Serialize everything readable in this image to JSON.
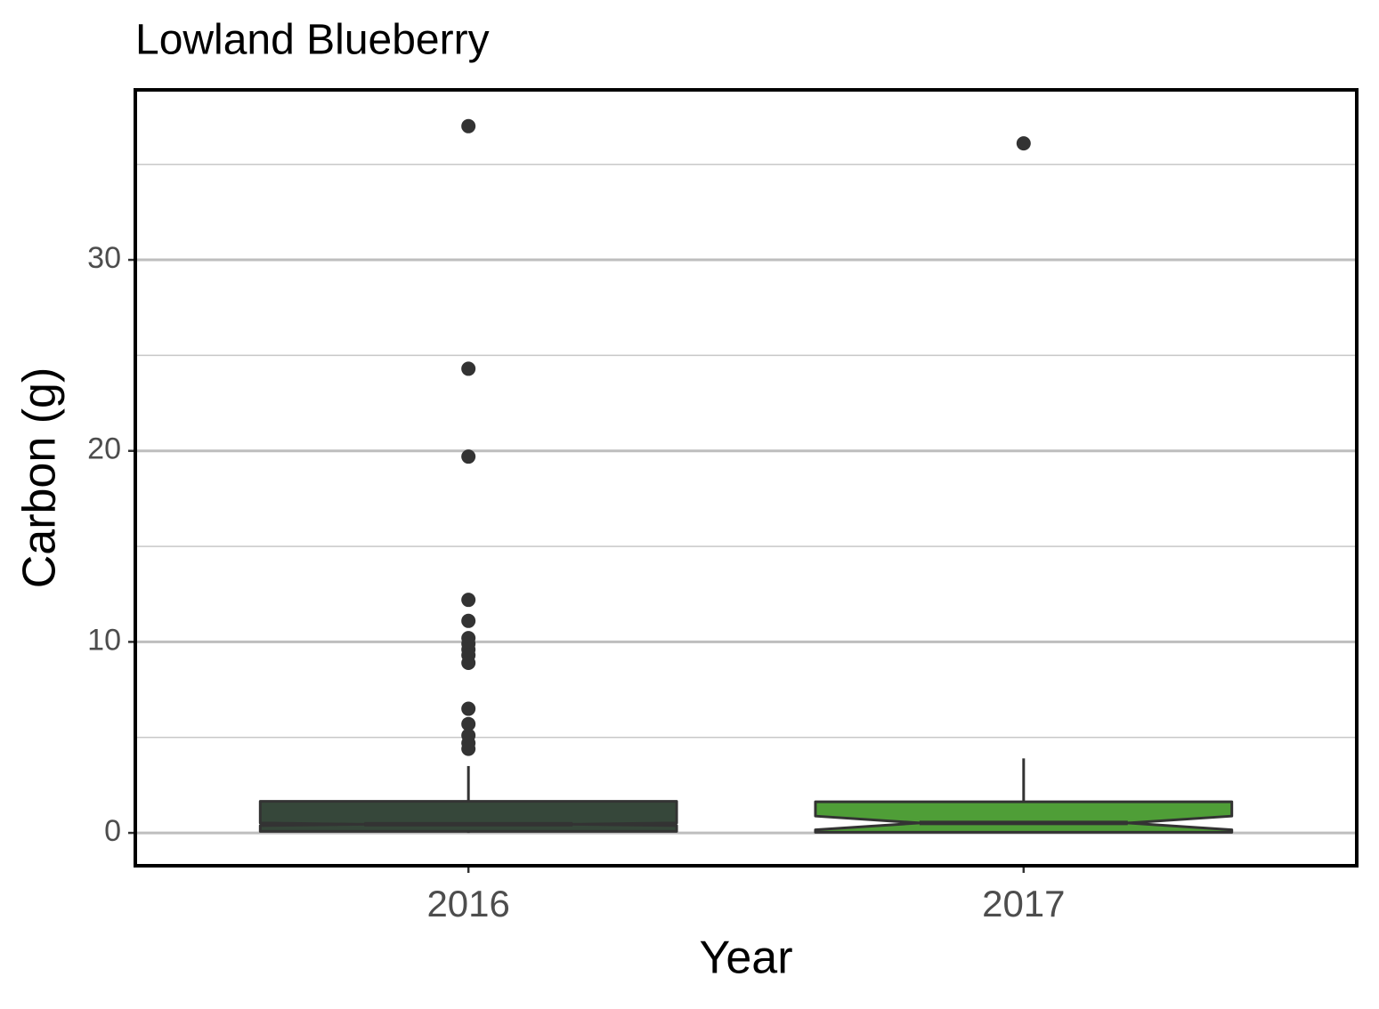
{
  "chart_data": {
    "type": "boxplot",
    "title": "Lowland Blueberry",
    "x_label": "Year",
    "y_label": "Carbon (g)",
    "categories": [
      "2016",
      "2017"
    ],
    "boxes": [
      {
        "color": "#36473a",
        "low": 0,
        "q1": 0.08,
        "notch_low": 0.38,
        "median": 0.45,
        "notch_high": 0.52,
        "q3": 1.65,
        "high": 3.5,
        "outliers": [
          37.0,
          24.3,
          19.7,
          12.2,
          11.1,
          10.2,
          9.9,
          9.6,
          9.3,
          8.9,
          6.5,
          5.7,
          5.1,
          4.7,
          4.4
        ]
      },
      {
        "color": "#4f9e37",
        "low": 0,
        "q1": 0.03,
        "notch_low": 0.16,
        "median": 0.52,
        "notch_high": 0.88,
        "q3": 1.63,
        "high": 3.9,
        "outliers": [
          36.1
        ]
      }
    ],
    "outline_color": "#333333",
    "ylim": [
      -1.72,
      38.9
    ],
    "yticks": [
      0,
      10,
      20,
      30
    ],
    "minor_yticks": [
      5,
      15,
      25,
      35
    ],
    "grid": true
  }
}
